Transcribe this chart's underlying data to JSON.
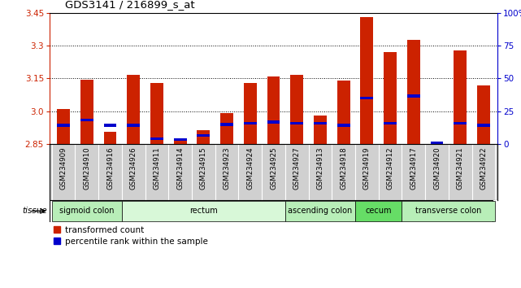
{
  "title": "GDS3141 / 216899_s_at",
  "samples": [
    "GSM234909",
    "GSM234910",
    "GSM234916",
    "GSM234926",
    "GSM234911",
    "GSM234914",
    "GSM234915",
    "GSM234923",
    "GSM234924",
    "GSM234925",
    "GSM234927",
    "GSM234913",
    "GSM234918",
    "GSM234919",
    "GSM234912",
    "GSM234917",
    "GSM234920",
    "GSM234921",
    "GSM234922"
  ],
  "bar_heights": [
    3.01,
    3.145,
    2.905,
    3.165,
    3.13,
    2.87,
    2.915,
    2.99,
    3.13,
    3.16,
    3.165,
    2.98,
    3.14,
    3.43,
    3.27,
    3.325,
    2.86,
    3.28,
    3.12
  ],
  "blue_positions": [
    2.935,
    2.96,
    2.935,
    2.935,
    2.875,
    2.87,
    2.89,
    2.94,
    2.945,
    2.95,
    2.945,
    2.945,
    2.935,
    3.06,
    2.945,
    3.07,
    2.855,
    2.945,
    2.935
  ],
  "ymin": 2.85,
  "ymax": 3.45,
  "y_ticks_left": [
    2.85,
    3.0,
    3.15,
    3.3,
    3.45
  ],
  "y_ticks_right": [
    0,
    25,
    50,
    75,
    100
  ],
  "right_axis_label": "%",
  "tissue_groups": [
    {
      "label": "sigmoid colon",
      "start": 0,
      "end": 3,
      "color": "#b8eeb8"
    },
    {
      "label": "rectum",
      "start": 3,
      "end": 10,
      "color": "#d8f8d8"
    },
    {
      "label": "ascending colon",
      "start": 10,
      "end": 13,
      "color": "#b8eeb8"
    },
    {
      "label": "cecum",
      "start": 13,
      "end": 15,
      "color": "#66dd66"
    },
    {
      "label": "transverse colon",
      "start": 15,
      "end": 19,
      "color": "#b8eeb8"
    }
  ],
  "bar_color": "#cc2200",
  "blue_color": "#0000cc",
  "bar_width": 0.55,
  "tissue_label": "tissue",
  "legend_items": [
    "transformed count",
    "percentile rank within the sample"
  ],
  "xtick_bg_color": "#d0d0d0"
}
